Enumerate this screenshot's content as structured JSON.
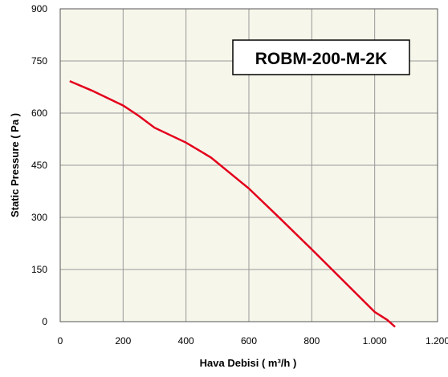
{
  "chart_data": {
    "type": "line",
    "title": "ROBM-200-M-2K",
    "xlabel": "Hava Debisi ( m³/h )",
    "ylabel": "Static Pressure ( Pa )",
    "xlim": [
      0,
      1200
    ],
    "ylim": [
      0,
      900
    ],
    "x_ticks": [
      "0",
      "200",
      "400",
      "600",
      "800",
      "1.000",
      "1.200"
    ],
    "y_ticks": [
      "0",
      "150",
      "300",
      "450",
      "600",
      "750",
      "900"
    ],
    "grid": true,
    "series": [
      {
        "x": [
          30,
          100,
          200,
          250,
          300,
          400,
          480,
          600,
          700,
          800,
          900,
          1000,
          1040,
          1065
        ],
        "y": [
          692,
          665,
          622,
          592,
          558,
          515,
          472,
          383,
          296,
          208,
          118,
          28,
          5,
          -15
        ]
      }
    ]
  },
  "colors": {
    "plot_background": "#f7f6eb",
    "grid": "#999999",
    "series": "#e3001b"
  }
}
